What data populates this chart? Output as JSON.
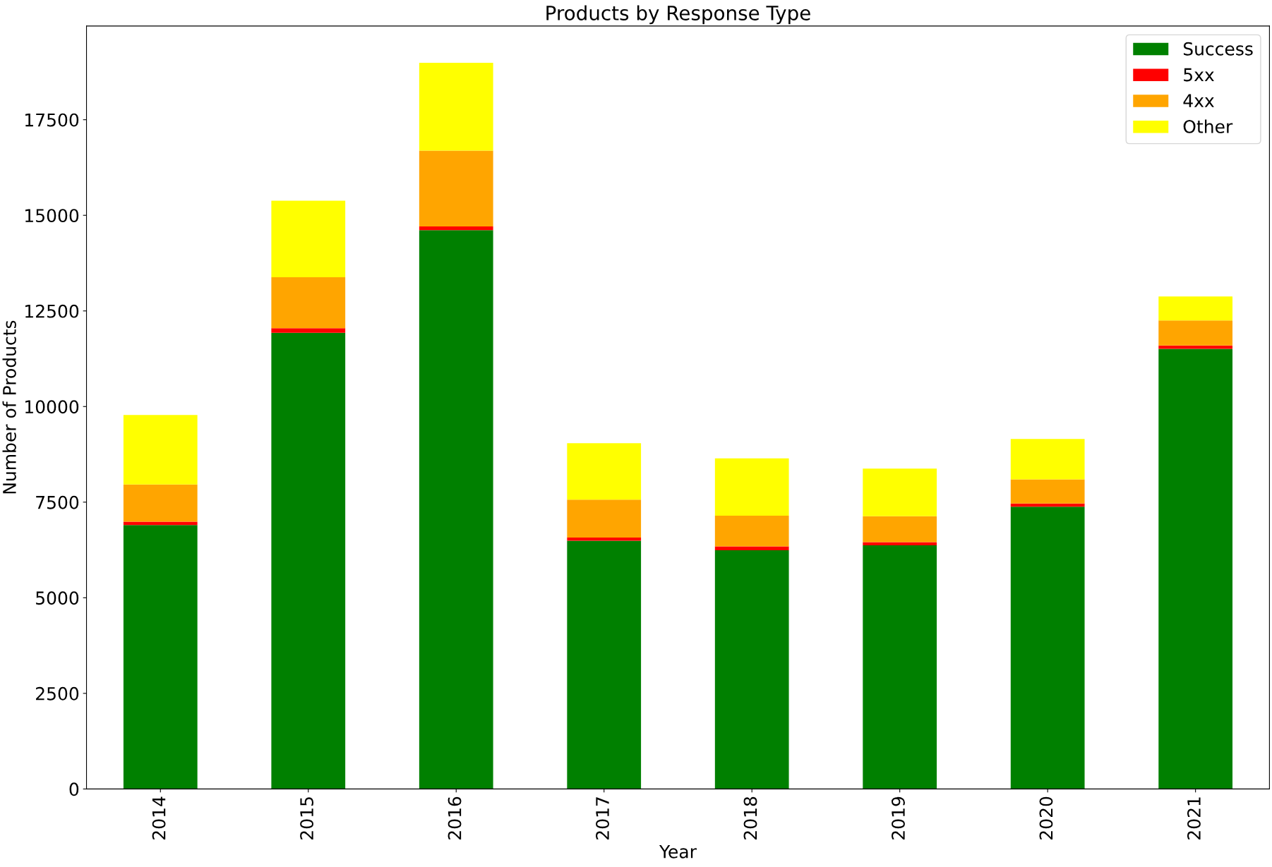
{
  "chart_data": {
    "type": "bar",
    "title": "Products by Response Type",
    "xlabel": "Year",
    "ylabel": "Number of Products",
    "categories": [
      "2014",
      "2015",
      "2016",
      "2017",
      "2018",
      "2019",
      "2020",
      "2021"
    ],
    "stacked": true,
    "series": [
      {
        "name": "Success",
        "color": "#008000",
        "values": [
          6900,
          11930,
          14610,
          6490,
          6240,
          6370,
          7380,
          11510
        ]
      },
      {
        "name": "5xx",
        "color": "#ff0000",
        "values": [
          90,
          120,
          100,
          85,
          105,
          85,
          85,
          85
        ]
      },
      {
        "name": "4xx",
        "color": "#ffa500",
        "values": [
          970,
          1330,
          1980,
          990,
          800,
          675,
          630,
          655
        ]
      },
      {
        "name": "Other",
        "color": "#ffff00",
        "values": [
          1820,
          2000,
          2300,
          1475,
          1500,
          1245,
          1055,
          630
        ]
      }
    ],
    "ylim": [
      0,
      19950
    ],
    "yticks": [
      0,
      2500,
      5000,
      7500,
      10000,
      12500,
      15000,
      17500
    ],
    "legend": "top right",
    "grid": false
  }
}
